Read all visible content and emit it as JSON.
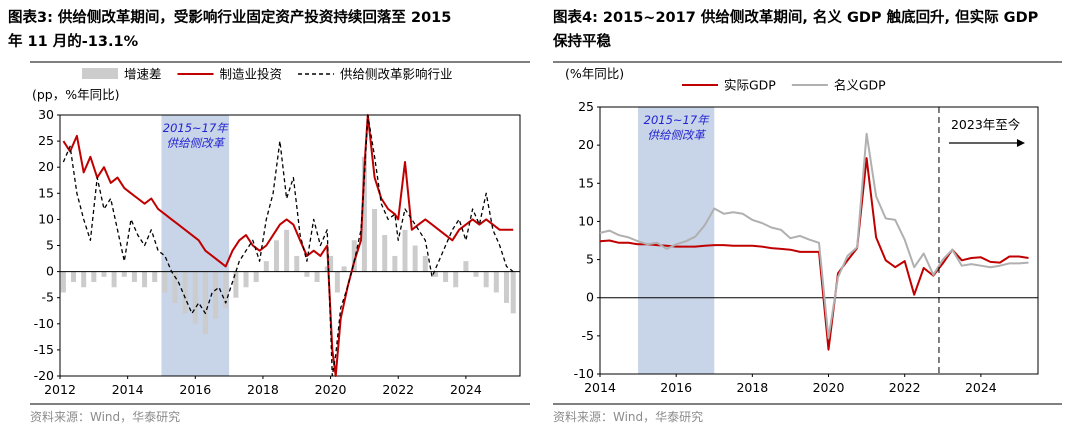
{
  "left": {
    "title_line1": "图表3:  供给侧改革期间，受影响行业固定资产投资持续回落至 2015",
    "title_line2": "年 11 月的-13.1%",
    "source": "资料来源：Wind，华泰研究"
  },
  "right": {
    "title_line1": "图表4:  2015~2017 供给侧改革期间, 名义 GDP 触底回升, 但实际 GDP",
    "title_line2": "保持平稳",
    "source": "资料来源：Wind，华泰研究"
  },
  "chart_data": [
    {
      "type": "line",
      "title": "",
      "ylabel": "(pp，%年同比)",
      "xlim": [
        2012,
        2025.6
      ],
      "ylim": [
        -20,
        30
      ],
      "yticks": [
        30,
        25,
        20,
        15,
        10,
        5,
        0,
        -5,
        -10,
        -15,
        -20
      ],
      "xticks": [
        2012,
        2014,
        2016,
        2018,
        2020,
        2022,
        2024
      ],
      "legend_position": "top",
      "shade": {
        "from": 2015.0,
        "to": 2017.0,
        "label_line1": "2015~17年",
        "label_line2": "供给侧改革",
        "color": "#c8d4e8"
      },
      "series": [
        {
          "name": "增速差",
          "kind": "bar",
          "color": "#cccccc",
          "x": [
            2012.1,
            2012.4,
            2012.7,
            2013.0,
            2013.3,
            2013.6,
            2013.9,
            2014.2,
            2014.5,
            2014.8,
            2015.1,
            2015.4,
            2015.7,
            2016.0,
            2016.3,
            2016.6,
            2016.9,
            2017.2,
            2017.5,
            2017.8,
            2018.1,
            2018.4,
            2018.7,
            2019.0,
            2019.3,
            2019.6,
            2019.9,
            2020.0,
            2020.2,
            2020.4,
            2020.7,
            2021.0,
            2021.3,
            2021.6,
            2021.9,
            2022.2,
            2022.5,
            2022.8,
            2023.1,
            2023.4,
            2023.7,
            2024.0,
            2024.3,
            2024.6,
            2024.9,
            2025.2,
            2025.4
          ],
          "values": [
            -4,
            -2,
            -3,
            -2,
            -1,
            -3,
            -1,
            -2,
            -3,
            -2,
            -4,
            -6,
            -8,
            -10,
            -12,
            -9,
            -7,
            -5,
            -3,
            -2,
            2,
            6,
            8,
            3,
            -1,
            -2,
            1,
            3,
            -4,
            1,
            6,
            22,
            12,
            7,
            3,
            8,
            5,
            3,
            -1,
            -2,
            -3,
            2,
            -1,
            -3,
            -4,
            -6,
            -8
          ]
        },
        {
          "name": "制造业投资",
          "kind": "line",
          "color": "#c00000",
          "x": [
            2012.1,
            2012.3,
            2012.5,
            2012.7,
            2012.9,
            2013.1,
            2013.3,
            2013.5,
            2013.7,
            2013.9,
            2014.1,
            2014.3,
            2014.5,
            2014.7,
            2014.9,
            2015.1,
            2015.3,
            2015.5,
            2015.7,
            2015.9,
            2016.1,
            2016.3,
            2016.5,
            2016.7,
            2016.9,
            2017.1,
            2017.3,
            2017.5,
            2017.7,
            2017.9,
            2018.1,
            2018.3,
            2018.5,
            2018.7,
            2018.9,
            2019.1,
            2019.3,
            2019.5,
            2019.7,
            2019.9,
            2020.05,
            2020.15,
            2020.3,
            2020.5,
            2020.7,
            2020.9,
            2021.0,
            2021.1,
            2021.3,
            2021.5,
            2021.7,
            2021.9,
            2022.0,
            2022.2,
            2022.4,
            2022.6,
            2022.8,
            2023.0,
            2023.2,
            2023.4,
            2023.6,
            2023.8,
            2024.0,
            2024.2,
            2024.4,
            2024.6,
            2024.8,
            2025.0,
            2025.2,
            2025.4
          ],
          "values": [
            25,
            23,
            26,
            19,
            22,
            18,
            20,
            17,
            18,
            16,
            15,
            14,
            13,
            14,
            12,
            11,
            10,
            9,
            8,
            7,
            6,
            4,
            3,
            2,
            1,
            4,
            6,
            7,
            5,
            4,
            5,
            7,
            9,
            10,
            9,
            6,
            3,
            4,
            3,
            5,
            -15,
            -20,
            -9,
            -3,
            2,
            6,
            20,
            30,
            18,
            14,
            12,
            11,
            10,
            21,
            8,
            9,
            10,
            9,
            8,
            7,
            6,
            8,
            9,
            10,
            9,
            10,
            9,
            8,
            8,
            8
          ]
        },
        {
          "name": "供给侧改革影响行业",
          "kind": "dash",
          "color": "#000000",
          "x": [
            2012.1,
            2012.3,
            2012.5,
            2012.7,
            2012.9,
            2013.1,
            2013.3,
            2013.5,
            2013.7,
            2013.9,
            2014.1,
            2014.3,
            2014.5,
            2014.7,
            2014.9,
            2015.1,
            2015.3,
            2015.5,
            2015.7,
            2015.9,
            2016.1,
            2016.3,
            2016.5,
            2016.7,
            2016.9,
            2017.1,
            2017.3,
            2017.5,
            2017.7,
            2017.9,
            2018.1,
            2018.3,
            2018.5,
            2018.7,
            2018.9,
            2019.1,
            2019.3,
            2019.5,
            2019.7,
            2019.9,
            2020.05,
            2020.15,
            2020.3,
            2020.5,
            2020.7,
            2020.9,
            2021.0,
            2021.1,
            2021.3,
            2021.5,
            2021.7,
            2021.9,
            2022.0,
            2022.2,
            2022.4,
            2022.6,
            2022.8,
            2023.0,
            2023.2,
            2023.4,
            2023.6,
            2023.8,
            2024.0,
            2024.2,
            2024.4,
            2024.6,
            2024.8,
            2025.0,
            2025.2,
            2025.4
          ],
          "values": [
            21,
            24,
            15,
            10,
            6,
            18,
            12,
            14,
            8,
            2,
            10,
            7,
            5,
            8,
            4,
            3,
            0,
            -2,
            -5,
            -8,
            -6,
            -8,
            -4,
            -3,
            -6,
            -2,
            2,
            4,
            6,
            2,
            10,
            15,
            25,
            14,
            18,
            7,
            2,
            10,
            5,
            8,
            -20,
            -16,
            -7,
            -3,
            2,
            8,
            18,
            30,
            22,
            13,
            10,
            11,
            6,
            12,
            10,
            8,
            6,
            -1,
            2,
            5,
            8,
            10,
            6,
            12,
            9,
            15,
            8,
            5,
            1,
            0
          ]
        }
      ]
    },
    {
      "type": "line",
      "title": "",
      "ylabel": "(%年同比)",
      "xlim": [
        2014,
        2025.5
      ],
      "ylim": [
        -10,
        25
      ],
      "yticks": [
        25,
        20,
        15,
        10,
        5,
        0,
        -5,
        -10
      ],
      "xticks": [
        2014,
        2016,
        2018,
        2020,
        2022,
        2024
      ],
      "legend_position": "top",
      "shade": {
        "from": 2015.0,
        "to": 2017.0,
        "label_line1": "2015~17年",
        "label_line2": "供给侧改革",
        "color": "#c8d4e8"
      },
      "vline": {
        "x": 2022.9,
        "label": "2023年至今"
      },
      "series": [
        {
          "name": "实际GDP",
          "kind": "line",
          "color": "#c00000",
          "x": [
            2014.0,
            2014.25,
            2014.5,
            2014.75,
            2015.0,
            2015.25,
            2015.5,
            2015.75,
            2016.0,
            2016.25,
            2016.5,
            2016.75,
            2017.0,
            2017.25,
            2017.5,
            2017.75,
            2018.0,
            2018.25,
            2018.5,
            2018.75,
            2019.0,
            2019.25,
            2019.5,
            2019.75,
            2020.0,
            2020.25,
            2020.5,
            2020.75,
            2021.0,
            2021.25,
            2021.5,
            2021.75,
            2022.0,
            2022.25,
            2022.5,
            2022.75,
            2023.0,
            2023.25,
            2023.5,
            2023.75,
            2024.0,
            2024.25,
            2024.5,
            2024.75,
            2025.0,
            2025.25
          ],
          "values": [
            7.4,
            7.5,
            7.2,
            7.2,
            7.0,
            7.0,
            6.9,
            6.8,
            6.7,
            6.7,
            6.7,
            6.8,
            6.9,
            6.9,
            6.8,
            6.8,
            6.8,
            6.7,
            6.5,
            6.4,
            6.3,
            6.0,
            6.0,
            6.0,
            -6.8,
            3.2,
            4.9,
            6.5,
            18.3,
            7.9,
            4.9,
            4.0,
            4.8,
            0.4,
            3.9,
            2.9,
            4.5,
            6.3,
            4.9,
            5.2,
            5.3,
            4.7,
            4.6,
            5.4,
            5.4,
            5.2
          ]
        },
        {
          "name": "名义GDP",
          "kind": "line",
          "color": "#b0b0b0",
          "x": [
            2014.0,
            2014.25,
            2014.5,
            2014.75,
            2015.0,
            2015.25,
            2015.5,
            2015.75,
            2016.0,
            2016.25,
            2016.5,
            2016.75,
            2017.0,
            2017.25,
            2017.5,
            2017.75,
            2018.0,
            2018.25,
            2018.5,
            2018.75,
            2019.0,
            2019.25,
            2019.5,
            2019.75,
            2020.0,
            2020.25,
            2020.5,
            2020.75,
            2021.0,
            2021.25,
            2021.5,
            2021.75,
            2022.0,
            2022.25,
            2022.5,
            2022.75,
            2023.0,
            2023.25,
            2023.5,
            2023.75,
            2024.0,
            2024.25,
            2024.5,
            2024.75,
            2025.0,
            2025.25
          ],
          "values": [
            8.5,
            8.8,
            8.2,
            7.9,
            7.4,
            7.0,
            7.2,
            6.4,
            7.0,
            7.4,
            8.0,
            9.5,
            11.7,
            11.0,
            11.2,
            11.0,
            10.2,
            9.8,
            9.2,
            8.9,
            7.8,
            8.1,
            7.6,
            7.2,
            -5.3,
            2.7,
            5.5,
            6.6,
            21.5,
            13.3,
            10.4,
            10.2,
            7.6,
            4.0,
            5.8,
            3.0,
            5.0,
            6.3,
            4.2,
            4.4,
            4.2,
            4.0,
            4.2,
            4.5,
            4.5,
            4.6
          ]
        }
      ]
    }
  ]
}
